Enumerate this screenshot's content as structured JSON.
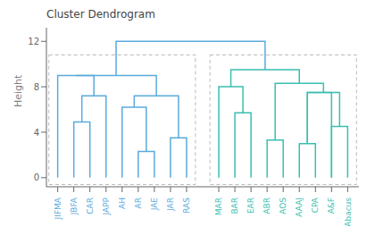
{
  "chart_data": {
    "type": "dendrogram",
    "title": "Cluster Dendrogram",
    "y_label": "Height",
    "ylim": [
      -0.8,
      13.2
    ],
    "yticks": [
      0,
      4,
      8,
      12
    ],
    "grid": false,
    "clusters": [
      {
        "leaves": [
          "JIFMA",
          "JBFA",
          "CAR",
          "JAPP",
          "AH",
          "AR",
          "JAE",
          "JAR",
          "RAS"
        ],
        "color": "#5aaadc"
      },
      {
        "leaves": [
          "MAR",
          "BAR",
          "EAR",
          "ABR",
          "AOS",
          "AAAJ",
          "CPA",
          "A&F",
          "Abacus"
        ],
        "color": "#3abfb0"
      }
    ],
    "cluster_box_ylim": [
      -0.6,
      10.8
    ],
    "merges": [
      {
        "left": [
          "JBFA"
        ],
        "right": [
          "CAR"
        ],
        "height": 4.9,
        "color": "#5aaadc"
      },
      {
        "left": [
          "JBFA",
          "CAR"
        ],
        "right": [
          "JAPP"
        ],
        "height": 7.2,
        "color": "#5aaadc"
      },
      {
        "left": [
          "JIFMA"
        ],
        "right": [
          "JBFA",
          "CAR",
          "JAPP"
        ],
        "height": 9.0,
        "color": "#5aaadc"
      },
      {
        "left": [
          "AR"
        ],
        "right": [
          "JAE"
        ],
        "height": 2.3,
        "color": "#5aaadc"
      },
      {
        "left": [
          "AH"
        ],
        "right": [
          "AR",
          "JAE"
        ],
        "height": 6.2,
        "color": "#5aaadc"
      },
      {
        "left": [
          "JAR"
        ],
        "right": [
          "RAS"
        ],
        "height": 3.5,
        "color": "#5aaadc"
      },
      {
        "left": [
          "AH",
          "AR",
          "JAE"
        ],
        "right": [
          "JAR",
          "RAS"
        ],
        "height": 7.2,
        "color": "#5aaadc"
      },
      {
        "left": [
          "JIFMA",
          "JBFA",
          "CAR",
          "JAPP"
        ],
        "right": [
          "AH",
          "AR",
          "JAE",
          "JAR",
          "RAS"
        ],
        "height": 9.0,
        "color": "#5aaadc"
      },
      {
        "left": [
          "BAR"
        ],
        "right": [
          "EAR"
        ],
        "height": 5.7,
        "color": "#3abfb0"
      },
      {
        "left": [
          "MAR"
        ],
        "right": [
          "BAR",
          "EAR"
        ],
        "height": 8.0,
        "color": "#3abfb0"
      },
      {
        "left": [
          "ABR"
        ],
        "right": [
          "AOS"
        ],
        "height": 3.3,
        "color": "#3abfb0"
      },
      {
        "left": [
          "AAAJ"
        ],
        "right": [
          "CPA"
        ],
        "height": 3.0,
        "color": "#3abfb0"
      },
      {
        "left": [
          "AAAJ",
          "CPA"
        ],
        "right": [
          "A&F"
        ],
        "height": 7.5,
        "color": "#3abfb0"
      },
      {
        "left": [
          "A&F"
        ],
        "right": [
          "Abacus"
        ],
        "height": 4.5,
        "color": "#3abfb0"
      },
      {
        "left": [
          "AAAJ",
          "CPA"
        ],
        "right": [
          "A&F",
          "Abacus"
        ],
        "height": 7.5,
        "color": "#3abfb0"
      },
      {
        "left": [
          "ABR",
          "AOS"
        ],
        "right": [
          "AAAJ",
          "CPA",
          "A&F",
          "Abacus"
        ],
        "height": 8.3,
        "color": "#3abfb0"
      },
      {
        "left": [
          "MAR",
          "BAR",
          "EAR"
        ],
        "right": [
          "ABR",
          "AOS",
          "AAAJ",
          "CPA",
          "A&F",
          "Abacus"
        ],
        "height": 9.5,
        "color": "#3abfb0"
      },
      {
        "left": [
          "JIFMA",
          "JBFA",
          "CAR",
          "JAPP",
          "AH",
          "AR",
          "JAE",
          "JAR",
          "RAS"
        ],
        "right": [
          "MAR",
          "BAR",
          "EAR",
          "ABR",
          "AOS",
          "AAAJ",
          "CPA",
          "A&F",
          "Abacus"
        ],
        "height": 12.0,
        "color": "#5aaadc"
      }
    ]
  }
}
